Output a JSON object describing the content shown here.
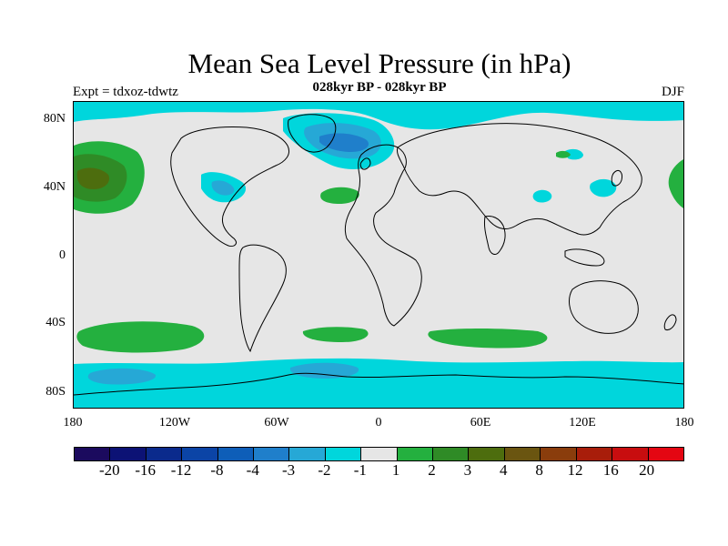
{
  "title": "Mean Sea Level Pressure (in hPa)",
  "subtitle": "028kyr BP - 028kyr BP",
  "expt": "Expt = tdxoz-tdwtz",
  "season": "DJF",
  "y_ticks": [
    "80N",
    "40N",
    "0",
    "40S",
    "80S"
  ],
  "x_ticks": [
    "180",
    "120W",
    "60W",
    "0",
    "60E",
    "120E",
    "180"
  ],
  "colorbar": {
    "labels": [
      "-20",
      "-16",
      "-12",
      "-8",
      "-4",
      "-3",
      "-2",
      "-1",
      "1",
      "2",
      "3",
      "4",
      "8",
      "12",
      "16",
      "20"
    ],
    "colors": [
      "#1b0a5e",
      "#0c1275",
      "#0a2a8c",
      "#0b44a6",
      "#0e5eb8",
      "#1f7fcb",
      "#26a8d6",
      "#00d6dc",
      "#e6e6e6",
      "#24b03f",
      "#2f8b26",
      "#4d6d0e",
      "#6a5510",
      "#8a3d0c",
      "#a81d0a",
      "#c80d0f",
      "#e40612"
    ]
  },
  "map_fill": {
    "neutral": "#e6e6e6",
    "neg_1_2": "#00d6dc",
    "neg_2_3": "#26a8d6",
    "neg_3_4": "#1f7fcb",
    "neg_4_8": "#0e5eb8",
    "pos_1_2": "#24b03f",
    "pos_2_3": "#2f8b26",
    "pos_3_4": "#4d6d0e",
    "pos_4_8": "#6a5510"
  }
}
